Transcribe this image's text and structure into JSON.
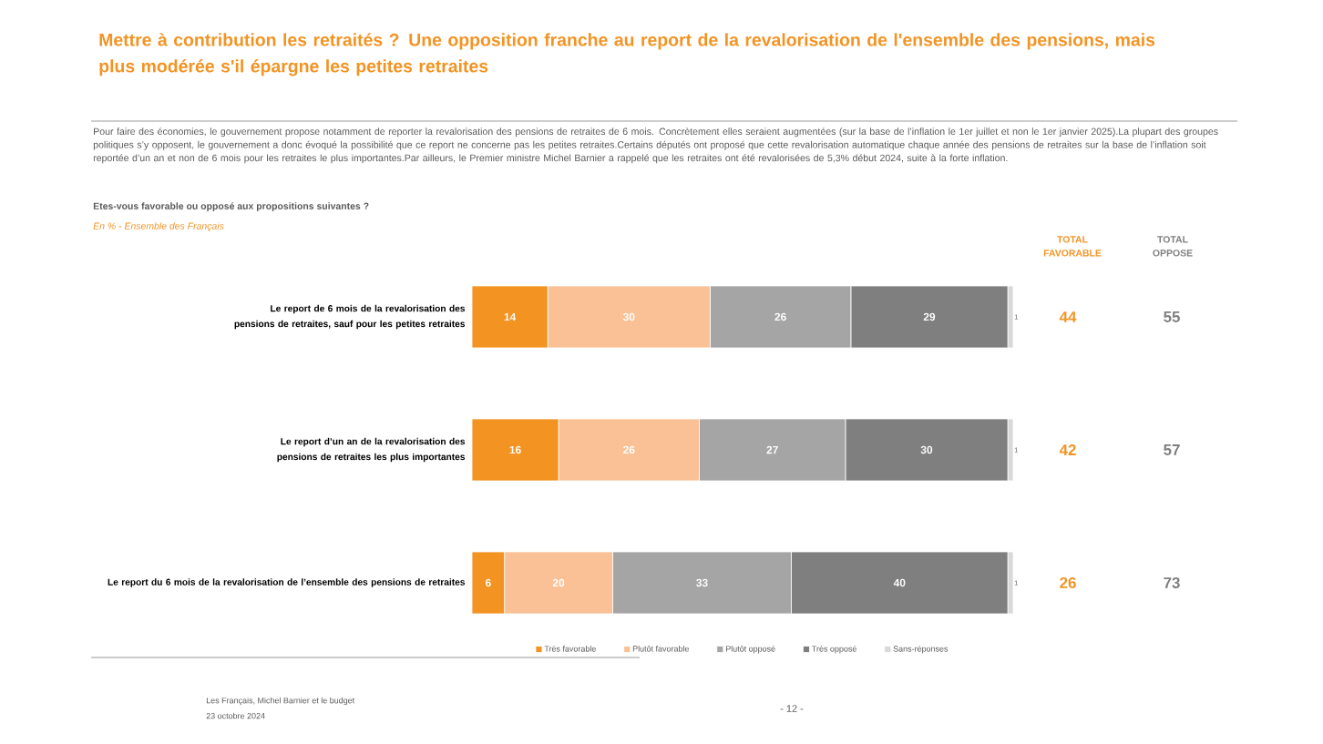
{
  "chart_data": {
    "type": "bar",
    "orientation": "horizontal",
    "stacked": true,
    "title": "Mettre à contribution les retraités ? Une opposition franche au report de la revalorisation de l'ensemble des pensions, mais plus modérée s'il épargne les petites retraites",
    "subtitle": "Pour faire des économies, le gouvernement propose notamment de reporter la revalorisation des pensions de retraites de 6 mois. Concrètement elles seraient augmentées (sur la base de l’inflation le 1er juillet et non le 1er janvier 2025).La plupart des groupes politiques s’y opposent, le gouvernement a donc évoqué la possibilité que ce report ne concerne pas les petites retraites.Certains députés ont proposé que cette revalorisation automatique chaque année des pensions de retraites sur la base de l’inflation soit reportée d’un an et non de 6 mois pour les retraites le plus importantes.Par ailleurs, le Premier ministre Michel Barnier a rappelé que les retraites ont été revalorisées de 5,3% début 2024, suite à la forte inflation.",
    "categories": [
      "Le report de 6 mois de la revalorisation des pensions de retraites, sauf pour les petites retraites",
      "Le report d’un an de la revalorisation des pensions de retraites les plus importantes",
      "Le report du 6 mois de la revalorisation de l’ensemble des pensions de retraites"
    ],
    "series": [
      {
        "name": "Très favorable",
        "color": "#f39322",
        "values": [
          14,
          16,
          6
        ]
      },
      {
        "name": "Plutôt favorable",
        "color": "#f9c195",
        "values": [
          30,
          26,
          20
        ]
      },
      {
        "name": "Plutôt opposé",
        "color": "#a5a5a5",
        "values": [
          26,
          27,
          33
        ]
      },
      {
        "name": "Très opposé",
        "color": "#7f7f7f",
        "values": [
          29,
          30,
          40
        ]
      },
      {
        "name": "Sans-réponses",
        "color": "#d9d9d9",
        "values": [
          1,
          1,
          1
        ]
      }
    ],
    "xlim": [
      0,
      100
    ],
    "tick_labels": "y",
    "data_labels": true,
    "legend": "bottom",
    "annotations": [
      "Etes-vous favorable ou opposé aux propositions suivantes ?",
      "En % - Ensemble des Français",
      "TOTAL FAVORABLE",
      "TOTAL OPPOSE",
      "44",
      "55",
      "42",
      "57",
      "26",
      "73",
      "Les Français, Michel Barnier et le budget",
      "23 octobre 2024",
      "- 12 -"
    ]
  }
}
